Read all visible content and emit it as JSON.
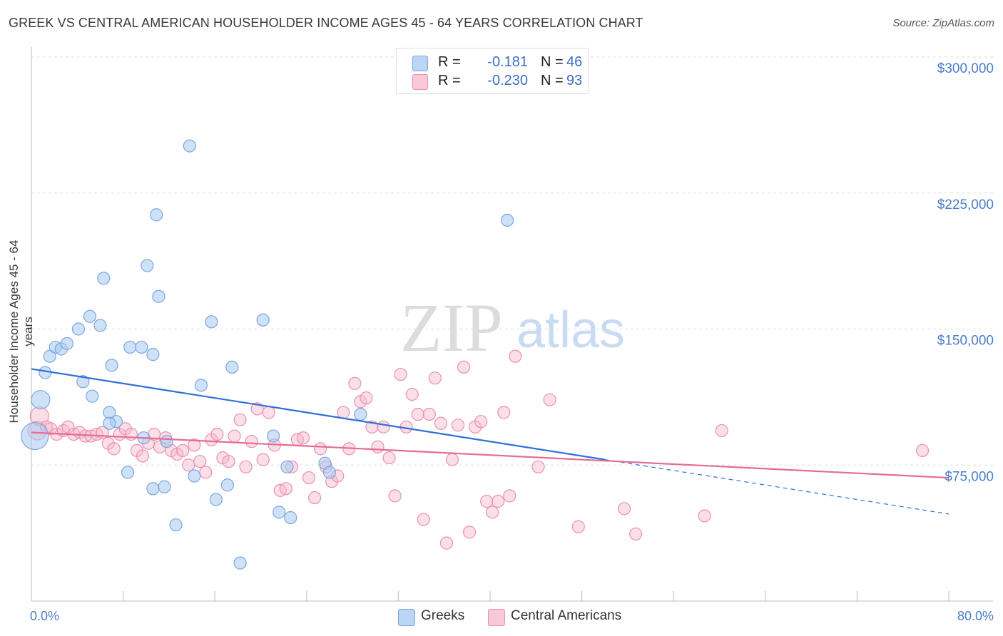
{
  "title": "GREEK VS CENTRAL AMERICAN HOUSEHOLDER INCOME AGES 45 - 64 YEARS CORRELATION CHART",
  "source": "Source: ZipAtlas.com",
  "watermark": {
    "zip": "ZIP",
    "atlas": "atlas"
  },
  "legend": {
    "greeks": {
      "r_label": "R =",
      "r_value": "-0.181",
      "n_label": "N =",
      "n_value": "46"
    },
    "central": {
      "r_label": "R =",
      "r_value": "-0.230",
      "n_label": "N =",
      "n_value": "93"
    }
  },
  "bottom_legend": {
    "greeks": "Greeks",
    "central": "Central Americans"
  },
  "colors": {
    "greeks_fill": "#a8c8f0",
    "greeks_stroke": "#7aa7e0",
    "greeks_line": "#2f6fd6",
    "central_fill": "#f5b8cb",
    "central_stroke": "#ee8fad",
    "central_line": "#e56b96",
    "tick_text": "#4a7cc9",
    "grid": "#dcdcdc"
  },
  "chart_data": {
    "type": "scatter",
    "title": "GREEK VS CENTRAL AMERICAN HOUSEHOLDER INCOME AGES 45 - 64 YEARS CORRELATION CHART",
    "xlabel": "",
    "ylabel": "Householder Income Ages 45 - 64 years",
    "xlim": [
      0,
      80
    ],
    "ylim": [
      0,
      310000
    ],
    "x_tick_labels": [
      "0.0%",
      "80.0%"
    ],
    "y_ticks": [
      75000,
      150000,
      225000,
      300000
    ],
    "y_tick_labels": [
      "$75,000",
      "$150,000",
      "$225,000",
      "$300,000"
    ],
    "grid": true,
    "legend_position": "top-center",
    "series": [
      {
        "name": "Greeks",
        "r": -0.181,
        "n": 46,
        "trend": {
          "x_start": 0,
          "y_start": 128000,
          "x_solid_end": 50,
          "y_solid_end": 78000,
          "x_end": 80,
          "y_end": 48000
        },
        "points": [
          [
            0.3,
            91000,
            3
          ],
          [
            0.8,
            111000,
            2
          ],
          [
            1.2,
            126000,
            1
          ],
          [
            1.6,
            135000,
            1
          ],
          [
            2.1,
            140000,
            1
          ],
          [
            2.6,
            139000,
            1
          ],
          [
            3.1,
            142000,
            1
          ],
          [
            4.1,
            150000,
            1
          ],
          [
            5.1,
            157000,
            1
          ],
          [
            6.0,
            152000,
            1
          ],
          [
            6.3,
            178000,
            1
          ],
          [
            4.5,
            121000,
            1
          ],
          [
            5.3,
            113000,
            1
          ],
          [
            7.0,
            130000,
            1
          ],
          [
            7.4,
            99000,
            1
          ],
          [
            8.6,
            140000,
            1
          ],
          [
            9.6,
            140000,
            1
          ],
          [
            10.6,
            136000,
            1
          ],
          [
            11.1,
            168000,
            1
          ],
          [
            11.6,
            63000,
            1
          ],
          [
            13.8,
            251000,
            1
          ],
          [
            14.2,
            69000,
            1
          ],
          [
            14.8,
            119000,
            1
          ],
          [
            15.7,
            154000,
            1
          ],
          [
            16.1,
            56000,
            1
          ],
          [
            17.1,
            64000,
            1
          ],
          [
            17.5,
            129000,
            1
          ],
          [
            18.2,
            21000,
            1
          ],
          [
            10.9,
            213000,
            1
          ],
          [
            10.1,
            185000,
            1
          ],
          [
            6.8,
            104000,
            1
          ],
          [
            8.4,
            71000,
            1
          ],
          [
            10.6,
            62000,
            1
          ],
          [
            11.8,
            88000,
            1
          ],
          [
            12.6,
            42000,
            1
          ],
          [
            20.2,
            155000,
            1
          ],
          [
            21.1,
            91000,
            1
          ],
          [
            21.6,
            49000,
            1
          ],
          [
            22.3,
            74000,
            1
          ],
          [
            22.6,
            46000,
            1
          ],
          [
            25.6,
            76000,
            1
          ],
          [
            26.0,
            71000,
            1
          ],
          [
            28.7,
            103000,
            1
          ],
          [
            6.8,
            98000,
            1
          ],
          [
            41.5,
            210000,
            1
          ],
          [
            9.8,
            90000,
            1
          ]
        ]
      },
      {
        "name": "Central Americans",
        "r": -0.23,
        "n": 93,
        "trend": {
          "x_start": 0,
          "y_start": 93000,
          "x_end": 80,
          "y_end": 68000
        },
        "points": [
          [
            0.5,
            94000,
            2
          ],
          [
            0.7,
            102000,
            2
          ],
          [
            1.3,
            96000,
            1
          ],
          [
            1.7,
            95000,
            1
          ],
          [
            2.2,
            92000,
            1
          ],
          [
            2.8,
            94000,
            1
          ],
          [
            3.2,
            96000,
            1
          ],
          [
            3.7,
            92000,
            1
          ],
          [
            4.2,
            93000,
            1
          ],
          [
            4.7,
            91000,
            1
          ],
          [
            5.2,
            91000,
            1
          ],
          [
            5.7,
            92000,
            1
          ],
          [
            6.2,
            93000,
            1
          ],
          [
            6.7,
            87000,
            1
          ],
          [
            7.2,
            84000,
            1
          ],
          [
            7.7,
            92000,
            1
          ],
          [
            8.2,
            95000,
            1
          ],
          [
            8.7,
            92000,
            1
          ],
          [
            9.2,
            83000,
            1
          ],
          [
            9.7,
            80000,
            1
          ],
          [
            10.2,
            87000,
            1
          ],
          [
            10.7,
            92000,
            1
          ],
          [
            11.2,
            85000,
            1
          ],
          [
            11.7,
            90000,
            1
          ],
          [
            12.2,
            83000,
            1
          ],
          [
            12.7,
            81000,
            1
          ],
          [
            13.2,
            83000,
            1
          ],
          [
            13.7,
            75000,
            1
          ],
          [
            14.2,
            86000,
            1
          ],
          [
            14.7,
            77000,
            1
          ],
          [
            15.2,
            71000,
            1
          ],
          [
            15.7,
            89000,
            1
          ],
          [
            16.2,
            92000,
            1
          ],
          [
            16.7,
            79000,
            1
          ],
          [
            17.2,
            77000,
            1
          ],
          [
            17.7,
            91000,
            1
          ],
          [
            18.2,
            100000,
            1
          ],
          [
            18.7,
            74000,
            1
          ],
          [
            19.2,
            88000,
            1
          ],
          [
            19.7,
            106000,
            1
          ],
          [
            20.2,
            78000,
            1
          ],
          [
            20.7,
            104000,
            1
          ],
          [
            21.2,
            86000,
            1
          ],
          [
            21.7,
            61000,
            1
          ],
          [
            22.2,
            62000,
            1
          ],
          [
            22.7,
            74000,
            1
          ],
          [
            23.2,
            89000,
            1
          ],
          [
            23.7,
            90000,
            1
          ],
          [
            24.2,
            68000,
            1
          ],
          [
            24.7,
            57000,
            1
          ],
          [
            25.2,
            84000,
            1
          ],
          [
            25.7,
            74000,
            1
          ],
          [
            26.2,
            66000,
            1
          ],
          [
            26.7,
            69000,
            1
          ],
          [
            27.2,
            104000,
            1
          ],
          [
            27.7,
            84000,
            1
          ],
          [
            28.2,
            120000,
            1
          ],
          [
            28.7,
            110000,
            1
          ],
          [
            29.2,
            112000,
            1
          ],
          [
            29.7,
            96000,
            1
          ],
          [
            30.2,
            85000,
            1
          ],
          [
            30.7,
            96000,
            1
          ],
          [
            31.2,
            79000,
            1
          ],
          [
            31.7,
            58000,
            1
          ],
          [
            32.2,
            125000,
            1
          ],
          [
            32.7,
            96000,
            1
          ],
          [
            33.2,
            114000,
            1
          ],
          [
            33.7,
            103000,
            1
          ],
          [
            34.2,
            45000,
            1
          ],
          [
            34.7,
            103000,
            1
          ],
          [
            35.2,
            123000,
            1
          ],
          [
            35.7,
            98000,
            1
          ],
          [
            36.2,
            32000,
            1
          ],
          [
            36.7,
            78000,
            1
          ],
          [
            37.2,
            97000,
            1
          ],
          [
            37.7,
            129000,
            1
          ],
          [
            38.2,
            38000,
            1
          ],
          [
            38.7,
            96000,
            1
          ],
          [
            39.2,
            99000,
            1
          ],
          [
            39.7,
            55000,
            1
          ],
          [
            40.2,
            49000,
            1
          ],
          [
            40.7,
            55000,
            1
          ],
          [
            41.2,
            104000,
            1
          ],
          [
            41.7,
            58000,
            1
          ],
          [
            42.2,
            135000,
            1
          ],
          [
            44.2,
            74000,
            1
          ],
          [
            45.2,
            111000,
            1
          ],
          [
            47.7,
            41000,
            1
          ],
          [
            51.7,
            51000,
            1
          ],
          [
            52.7,
            37000,
            1
          ],
          [
            58.7,
            47000,
            1
          ],
          [
            60.2,
            94000,
            1
          ],
          [
            77.7,
            83000,
            1
          ]
        ]
      }
    ]
  }
}
